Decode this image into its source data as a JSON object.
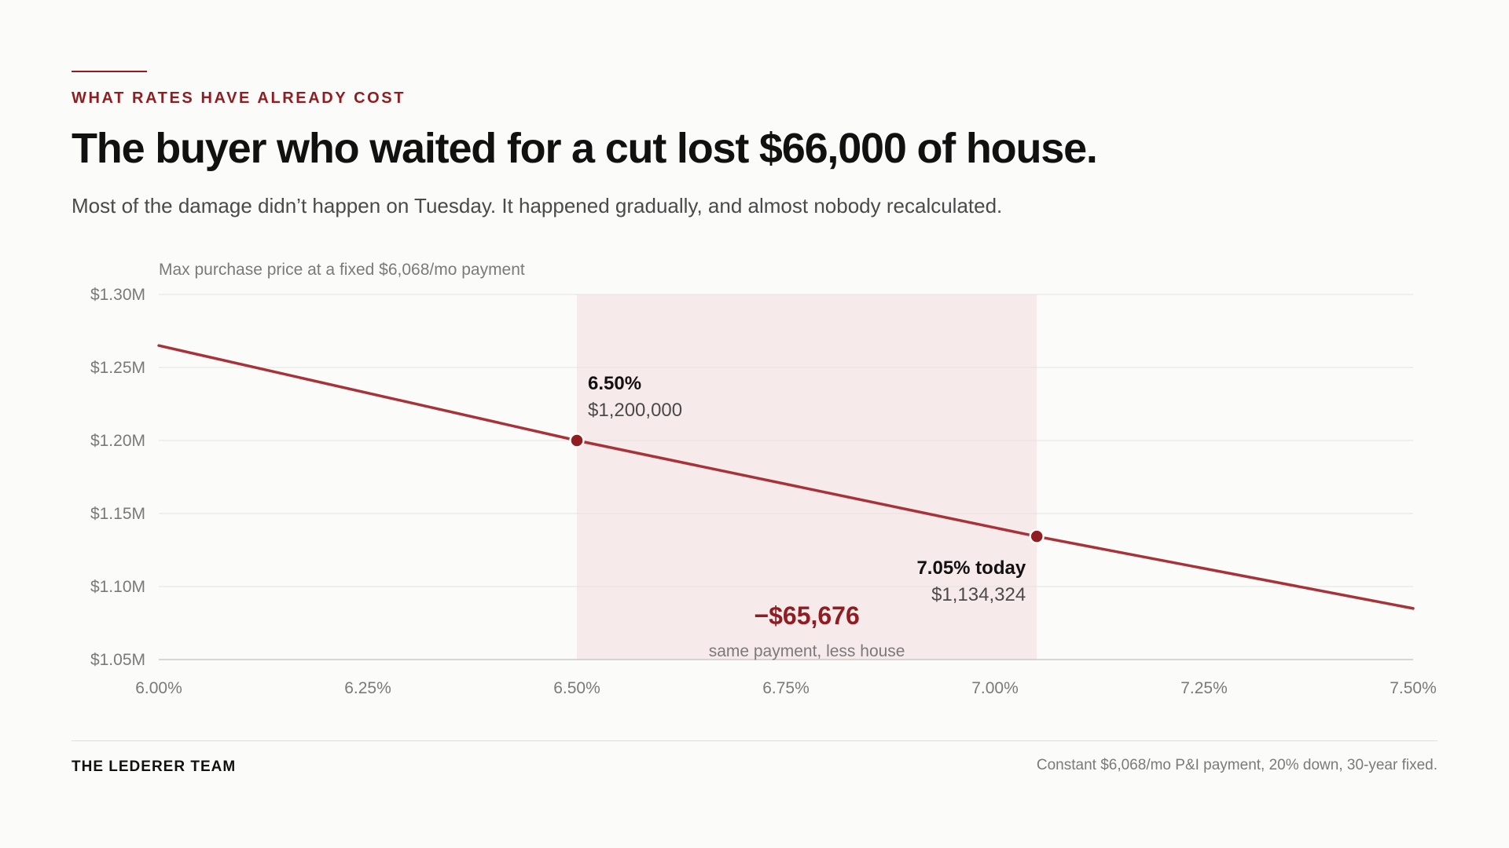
{
  "header": {
    "kicker": "WHAT RATES HAVE ALREADY COST",
    "headline": "The buyer who waited for a cut lost $66,000 of house.",
    "dek": "Most of the damage didn’t happen on Tuesday. It happened gradually, and almost nobody recalculated."
  },
  "footer": {
    "brand": "THE LEDERER TEAM",
    "note": "Constant $6,068/mo P&I payment, 20% down, 30-year fixed."
  },
  "colors": {
    "accent": "#8f1d22",
    "line": "#a8323a",
    "band": "#f7eaea",
    "grid": "#e3e3e0",
    "axis_text": "#7a7a7a"
  },
  "chart_data": {
    "type": "line",
    "title": "Max purchase price at a fixed $6,068/mo payment",
    "xlabel": "",
    "ylabel": "Max purchase price at a fixed $6,068/mo payment",
    "xlim": [
      6.0,
      7.5
    ],
    "ylim": [
      1.05,
      1.3
    ],
    "x_ticks": [
      6.0,
      6.25,
      6.5,
      6.75,
      7.0,
      7.25,
      7.5
    ],
    "x_tick_labels": [
      "6.00%",
      "6.25%",
      "6.50%",
      "6.75%",
      "7.00%",
      "7.25%",
      "7.50%"
    ],
    "y_ticks": [
      1.05,
      1.1,
      1.15,
      1.2,
      1.25,
      1.3
    ],
    "y_tick_labels": [
      "$1.05M",
      "$1.10M",
      "$1.15M",
      "$1.20M",
      "$1.25M",
      "$1.30M"
    ],
    "grid": true,
    "series": [
      {
        "x": [
          6.0,
          6.5,
          7.05,
          7.5
        ],
        "y": [
          1.265,
          1.2,
          1.134324,
          1.085
        ]
      }
    ],
    "highlight_band": [
      6.5,
      7.05
    ],
    "points": [
      {
        "x": 6.5,
        "y": 1.2,
        "label": "6.50%",
        "value": "$1,200,000"
      },
      {
        "x": 7.05,
        "y": 1.134324,
        "label": "7.05% today",
        "value": "$1,134,324"
      }
    ],
    "difference": {
      "value": "−$65,676",
      "caption": "same payment, less house"
    }
  }
}
